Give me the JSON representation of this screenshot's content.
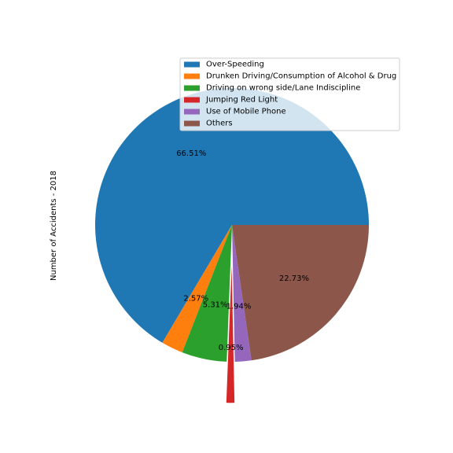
{
  "chart_data": {
    "type": "pie",
    "ylabel": "Number of Accidents - 2018",
    "legend_position": "upper-right",
    "start_angle_deg": 0,
    "direction": "counterclockwise",
    "slices": [
      {
        "name": "Over-Speeding",
        "value": 66.51,
        "label": "66.51%",
        "color": "#1f77b4",
        "explode": 0
      },
      {
        "name": "Drunken Driving/Consumption of Alcohol & Drug",
        "value": 2.57,
        "label": "2.57%",
        "color": "#ff7f0e",
        "explode": 0
      },
      {
        "name": "Driving on wrong side/Lane Indiscipline",
        "value": 5.31,
        "label": "5.31%",
        "color": "#2ca02c",
        "explode": 0
      },
      {
        "name": "Jumping Red Light",
        "value": 0.95,
        "label": "0.95%",
        "color": "#d62728",
        "explode": 0.3
      },
      {
        "name": "Use of Mobile Phone",
        "value": 1.94,
        "label": "1.94%",
        "color": "#9467bd",
        "explode": 0
      },
      {
        "name": "Others",
        "value": 22.73,
        "label": "22.73%",
        "color": "#8c564b",
        "explode": 0
      }
    ]
  }
}
